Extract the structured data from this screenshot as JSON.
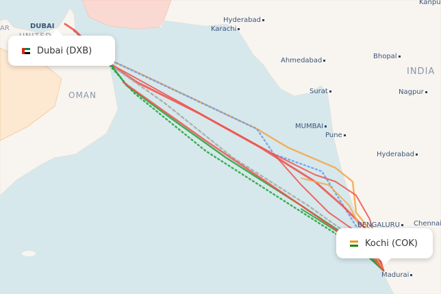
{
  "origin": {
    "label": "Dubai (DXB)",
    "flag": "uae-flag"
  },
  "destination": {
    "label": "Kochi (COK)",
    "flag": "india-flag"
  },
  "places": {
    "dubai": "DUBAI",
    "united": "UNITED",
    "qatar_partial": "AR",
    "oman": "OMAN",
    "india": "INDIA",
    "hyderabad_pk": "Hyderabad",
    "karachi": "Karachi",
    "kanpur": "Kanpur",
    "ahmedabad": "Ahmedabad",
    "bhopal": "Bhopal",
    "surat": "Surat",
    "nagpur": "Nagpur",
    "mumbai": "MUMBAI",
    "pune": "Pune",
    "hyderabad_in": "Hyderabad",
    "chennai": "Chennai",
    "bengaluru": "BENGALURU",
    "madurai": "Madurai"
  },
  "route_colors": {
    "red": "#f0504a",
    "orange": "#f5a649",
    "blue": "#6b9ef0",
    "green": "#22a33a",
    "gray": "#a8a8a8"
  },
  "colors": {
    "sea": "#d6e8ec",
    "land": "#f8f5f0",
    "iran": "#fbd9d3",
    "saudi": "#fde9d2"
  }
}
